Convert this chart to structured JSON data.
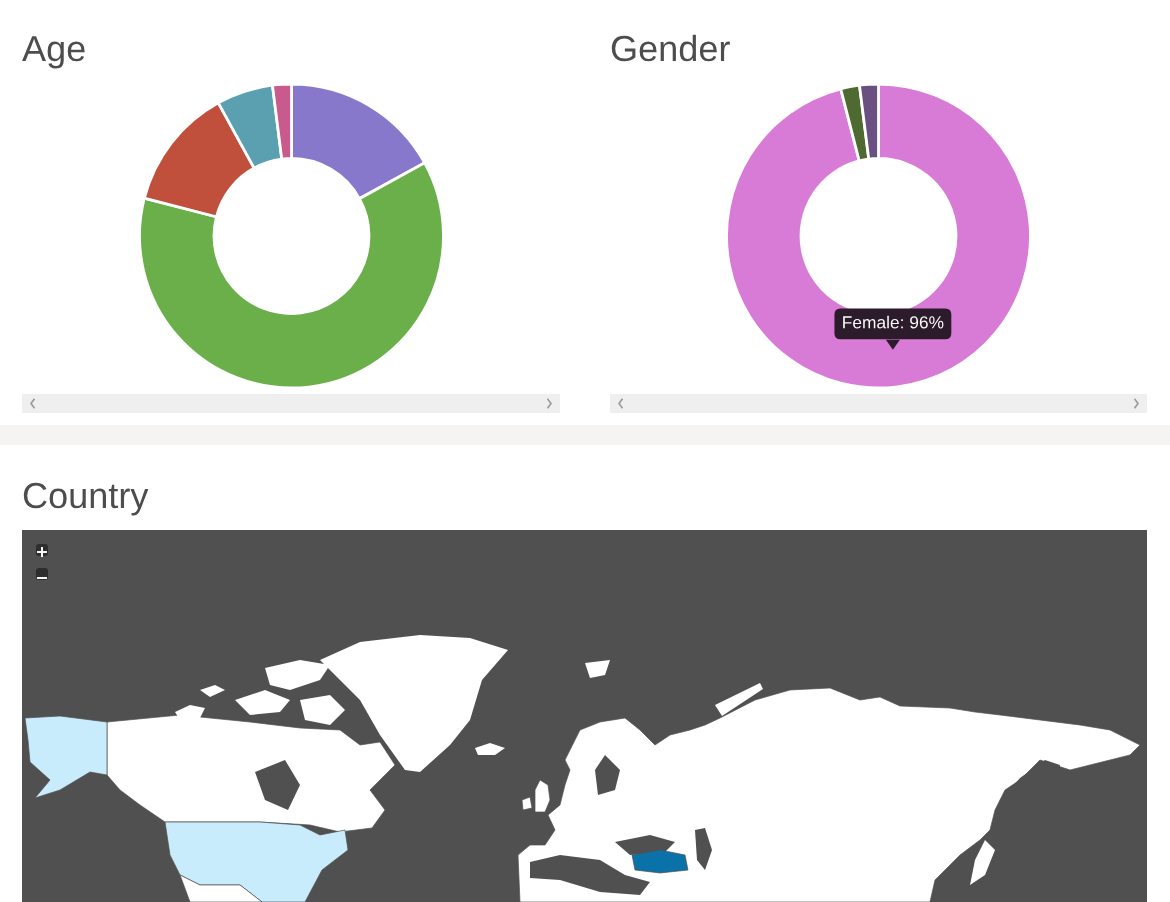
{
  "chart_data": [
    {
      "type": "donut",
      "title": "Age",
      "categories": [
        null,
        null,
        null,
        null,
        null
      ],
      "values": [
        17,
        62,
        13,
        6,
        2
      ],
      "colors": [
        "#8878cc",
        "#6aaf4a",
        "#c0503c",
        "#5ba0b0",
        "#c85a8e"
      ]
    },
    {
      "type": "donut",
      "title": "Gender",
      "categories": [
        "Female",
        null,
        null
      ],
      "values": [
        96,
        2,
        2
      ],
      "colors": [
        "#d77bd6",
        "#4e6a30",
        "#6a5080"
      ],
      "value_labels": [
        "96%",
        null,
        null
      ]
    },
    {
      "type": "other",
      "title": "Country"
    }
  ]
}
